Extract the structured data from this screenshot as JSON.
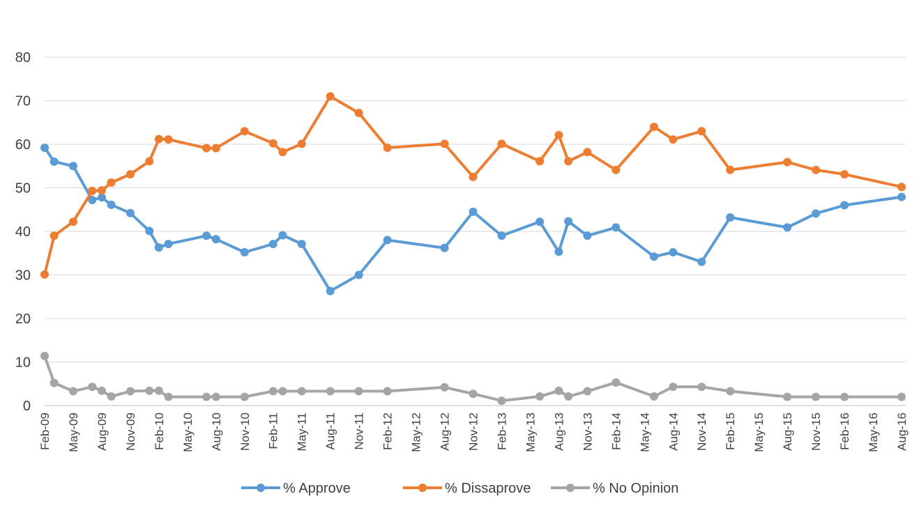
{
  "chart_data": {
    "type": "line",
    "title": "",
    "xlabel": "",
    "ylabel": "",
    "ylim": [
      0,
      80
    ],
    "yticks": [
      0,
      10,
      20,
      30,
      40,
      50,
      60,
      70,
      80
    ],
    "grid": true,
    "legend_position": "bottom",
    "x_tick_labels": [
      "Feb-09",
      "May-09",
      "Aug-09",
      "Nov-09",
      "Feb-10",
      "May-10",
      "Aug-10",
      "Nov-10",
      "Feb-11",
      "May-11",
      "Aug-11",
      "Nov-11",
      "Feb-12",
      "May-12",
      "Aug-12",
      "Nov-12",
      "Feb-13",
      "May-13",
      "Aug-13",
      "Nov-13",
      "Feb-14",
      "May-14",
      "Aug-14",
      "Nov-14",
      "Feb-15",
      "May-15",
      "Aug-15",
      "Nov-15",
      "Feb-16",
      "May-16",
      "Aug-16"
    ],
    "series": [
      {
        "name": "% Approve",
        "color": "#5b9bd5",
        "points": [
          [
            "2009-02",
            59.2
          ],
          [
            "2009-03",
            56
          ],
          [
            "2009-05",
            55
          ],
          [
            "2009-07",
            47.2
          ],
          [
            "2009-08",
            47.8
          ],
          [
            "2009-09",
            46.1
          ],
          [
            "2009-11",
            44.2
          ],
          [
            "2010-01",
            40.1
          ],
          [
            "2010-02",
            36.3
          ],
          [
            "2010-03",
            37.1
          ],
          [
            "2010-07",
            39
          ],
          [
            "2010-08",
            38.2
          ],
          [
            "2010-11",
            35.2
          ],
          [
            "2011-02",
            37.1
          ],
          [
            "2011-03",
            39.1
          ],
          [
            "2011-05",
            37.1
          ],
          [
            "2011-08",
            26.3
          ],
          [
            "2011-11",
            30
          ],
          [
            "2012-02",
            38
          ],
          [
            "2012-08",
            36.2
          ],
          [
            "2012-11",
            44.5
          ],
          [
            "2013-02",
            39
          ],
          [
            "2013-06",
            42.2
          ],
          [
            "2013-08",
            35.3
          ],
          [
            "2013-09",
            42.3
          ],
          [
            "2013-11",
            39
          ],
          [
            "2014-02",
            40.9
          ],
          [
            "2014-06",
            34.2
          ],
          [
            "2014-08",
            35.2
          ],
          [
            "2014-11",
            33
          ],
          [
            "2015-02",
            43.2
          ],
          [
            "2015-08",
            40.9
          ],
          [
            "2015-11",
            44.1
          ],
          [
            "2016-02",
            46
          ],
          [
            "2016-08",
            47.9
          ]
        ]
      },
      {
        "name": "% Dissaprove",
        "color": "#ed7d31",
        "points": [
          [
            "2009-02",
            30.1
          ],
          [
            "2009-03",
            39
          ],
          [
            "2009-05",
            42.2
          ],
          [
            "2009-07",
            49.3
          ],
          [
            "2009-08",
            49.4
          ],
          [
            "2009-09",
            51.2
          ],
          [
            "2009-11",
            53.1
          ],
          [
            "2010-01",
            56.1
          ],
          [
            "2010-02",
            61.2
          ],
          [
            "2010-03",
            61.1
          ],
          [
            "2010-07",
            59.1
          ],
          [
            "2010-08",
            59.1
          ],
          [
            "2010-11",
            63
          ],
          [
            "2011-02",
            60.2
          ],
          [
            "2011-03",
            58.2
          ],
          [
            "2011-05",
            60.1
          ],
          [
            "2011-08",
            71
          ],
          [
            "2011-11",
            67.2
          ],
          [
            "2012-02",
            59.2
          ],
          [
            "2012-08",
            60.1
          ],
          [
            "2012-11",
            52.5
          ],
          [
            "2013-02",
            60.1
          ],
          [
            "2013-06",
            56.1
          ],
          [
            "2013-08",
            62.1
          ],
          [
            "2013-09",
            56.1
          ],
          [
            "2013-11",
            58.2
          ],
          [
            "2014-02",
            54.1
          ],
          [
            "2014-06",
            64
          ],
          [
            "2014-08",
            61.1
          ],
          [
            "2014-11",
            63
          ],
          [
            "2015-02",
            54.1
          ],
          [
            "2015-08",
            55.9
          ],
          [
            "2015-11",
            54.1
          ],
          [
            "2016-02",
            53.1
          ],
          [
            "2016-08",
            50.2
          ]
        ]
      },
      {
        "name": "% No Opinion",
        "color": "#a5a5a5",
        "points": [
          [
            "2009-02",
            11.4
          ],
          [
            "2009-03",
            5.2
          ],
          [
            "2009-05",
            3.3
          ],
          [
            "2009-07",
            4.3
          ],
          [
            "2009-08",
            3.4
          ],
          [
            "2009-09",
            2.1
          ],
          [
            "2009-11",
            3.3
          ],
          [
            "2010-01",
            3.4
          ],
          [
            "2010-02",
            3.4
          ],
          [
            "2010-03",
            2
          ],
          [
            "2010-07",
            2
          ],
          [
            "2010-08",
            2
          ],
          [
            "2010-11",
            2
          ],
          [
            "2011-02",
            3.3
          ],
          [
            "2011-03",
            3.3
          ],
          [
            "2011-05",
            3.3
          ],
          [
            "2011-08",
            3.3
          ],
          [
            "2011-11",
            3.3
          ],
          [
            "2012-02",
            3.3
          ],
          [
            "2012-08",
            4.2
          ],
          [
            "2012-11",
            2.7
          ],
          [
            "2013-02",
            1.1
          ],
          [
            "2013-06",
            2.1
          ],
          [
            "2013-08",
            3.4
          ],
          [
            "2013-09",
            2.1
          ],
          [
            "2013-11",
            3.3
          ],
          [
            "2014-02",
            5.3
          ],
          [
            "2014-06",
            2.1
          ],
          [
            "2014-08",
            4.3
          ],
          [
            "2014-11",
            4.3
          ],
          [
            "2015-02",
            3.3
          ],
          [
            "2015-08",
            2
          ],
          [
            "2015-11",
            2
          ],
          [
            "2016-02",
            2
          ],
          [
            "2016-08",
            2
          ]
        ]
      }
    ]
  }
}
